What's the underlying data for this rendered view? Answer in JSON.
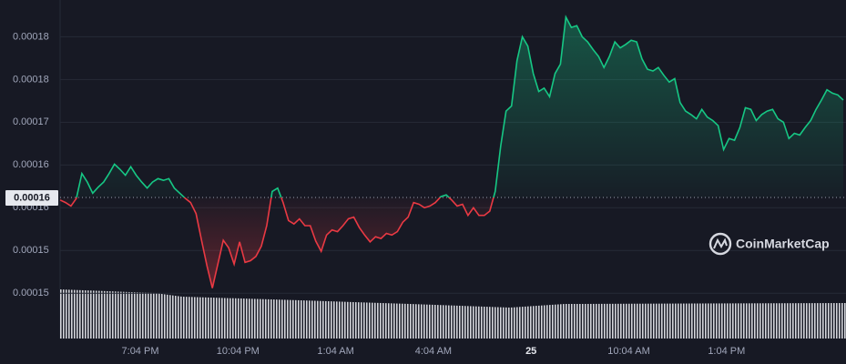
{
  "chart_data": {
    "type": "line",
    "watermark": "CoinMarketCap",
    "series": [
      {
        "name": "Price",
        "up_color": "#16c784",
        "down_color": "#ea3943",
        "values": [
          0.0001609,
          0.0001606,
          0.0001602,
          0.0001611,
          0.000164,
          0.000163,
          0.0001617,
          0.0001624,
          0.000163,
          0.000164,
          0.0001651,
          0.0001645,
          0.0001638,
          0.0001648,
          0.0001638,
          0.000163,
          0.0001623,
          0.000163,
          0.0001634,
          0.0001632,
          0.0001634,
          0.0001623,
          0.0001617,
          0.0001611,
          0.0001606,
          0.0001593,
          0.0001562,
          0.0001532,
          0.0001506,
          0.0001534,
          0.0001562,
          0.0001553,
          0.0001534,
          0.000156,
          0.0001536,
          0.0001538,
          0.0001543,
          0.0001555,
          0.0001579,
          0.0001619,
          0.0001623,
          0.0001606,
          0.0001585,
          0.0001581,
          0.0001587,
          0.0001579,
          0.0001579,
          0.0001561,
          0.0001549,
          0.0001568,
          0.0001574,
          0.0001572,
          0.0001579,
          0.0001587,
          0.0001589,
          0.0001577,
          0.0001568,
          0.000156,
          0.0001566,
          0.0001564,
          0.000157,
          0.0001568,
          0.0001572,
          0.0001583,
          0.0001589,
          0.0001606,
          0.0001604,
          0.00016,
          0.0001602,
          0.0001606,
          0.0001613,
          0.0001615,
          0.0001609,
          0.0001602,
          0.0001604,
          0.0001591,
          0.00016,
          0.0001591,
          0.0001591,
          0.0001596,
          0.0001619,
          0.0001672,
          0.0001713,
          0.0001719,
          0.0001772,
          0.00018,
          0.0001789,
          0.0001757,
          0.0001736,
          0.000174,
          0.000173,
          0.0001757,
          0.0001768,
          0.0001823,
          0.0001811,
          0.0001813,
          0.00018,
          0.0001794,
          0.0001785,
          0.0001777,
          0.0001764,
          0.0001777,
          0.0001794,
          0.0001787,
          0.0001791,
          0.0001796,
          0.0001794,
          0.0001774,
          0.0001762,
          0.000176,
          0.0001764,
          0.0001755,
          0.0001747,
          0.0001751,
          0.0001723,
          0.0001713,
          0.0001709,
          0.0001704,
          0.0001715,
          0.0001706,
          0.0001702,
          0.0001696,
          0.0001668,
          0.0001681,
          0.0001679,
          0.0001694,
          0.0001717,
          0.0001715,
          0.0001702,
          0.0001709,
          0.0001713,
          0.0001715,
          0.0001704,
          0.00017,
          0.0001681,
          0.0001687,
          0.0001685,
          0.0001694,
          0.0001702,
          0.0001715,
          0.0001726,
          0.0001738,
          0.0001734,
          0.0001732,
          0.0001726
        ]
      }
    ],
    "reference_line": {
      "value": 0.0001612,
      "label": "0.00016"
    },
    "ylim": [
      0.0001447,
      0.0001843
    ],
    "yticks": [
      {
        "value": 0.00015,
        "label": "0.00015"
      },
      {
        "value": 0.000155,
        "label": "0.00015"
      },
      {
        "value": 0.00016,
        "label": "0.00016"
      },
      {
        "value": 0.000165,
        "label": "0.00016"
      },
      {
        "value": 0.00017,
        "label": "0.00017"
      },
      {
        "value": 0.000175,
        "label": "0.00018"
      },
      {
        "value": 0.00018,
        "label": "0.00018"
      }
    ],
    "xticks": [
      "7:04 PM",
      "10:04 PM",
      "1:04 AM",
      "4:04 AM",
      "25",
      "10:04 AM",
      "1:04 PM"
    ],
    "grid": true
  }
}
